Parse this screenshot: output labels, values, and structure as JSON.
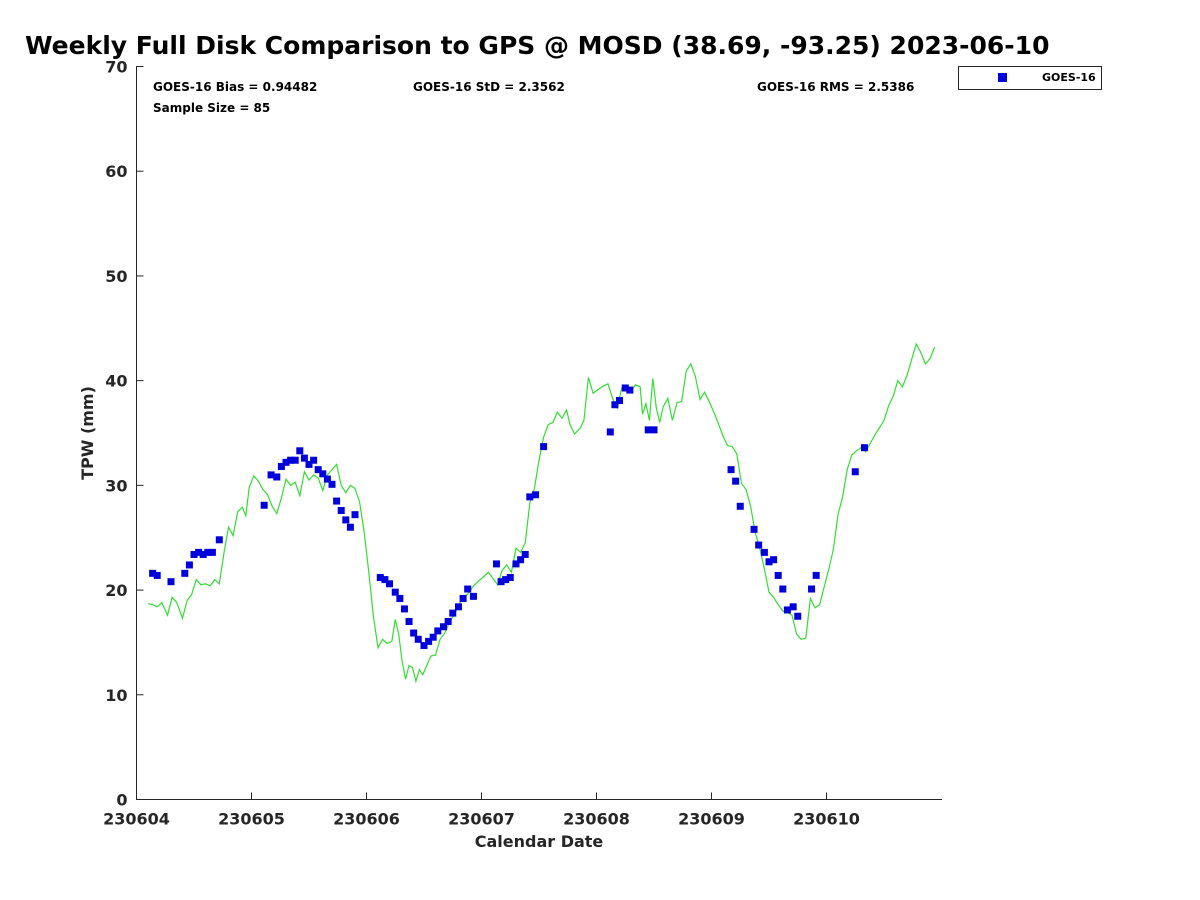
{
  "chart_data": {
    "type": "scatter",
    "title": "Weekly Full Disk Comparison to GPS @ MOSD (38.69, -93.25) 2023-06-10",
    "xlabel": "Calendar Date",
    "ylabel": "TPW (mm)",
    "xlim": [
      230604.0,
      230611.0
    ],
    "ylim": [
      0,
      70
    ],
    "x_ticks": [
      {
        "value": 230604,
        "label": "230604"
      },
      {
        "value": 230605,
        "label": "230605"
      },
      {
        "value": 230606,
        "label": "230606"
      },
      {
        "value": 230607,
        "label": "230607"
      },
      {
        "value": 230608,
        "label": "230608"
      },
      {
        "value": 230609,
        "label": "230609"
      },
      {
        "value": 230610,
        "label": "230610"
      }
    ],
    "y_ticks": [
      {
        "value": 0,
        "label": "0"
      },
      {
        "value": 10,
        "label": "10"
      },
      {
        "value": 20,
        "label": "20"
      },
      {
        "value": 30,
        "label": "30"
      },
      {
        "value": 40,
        "label": "40"
      },
      {
        "value": 50,
        "label": "50"
      },
      {
        "value": 60,
        "label": "60"
      },
      {
        "value": 70,
        "label": "70"
      }
    ],
    "grid": false,
    "legend_position": "top-right",
    "stats": {
      "bias": "GOES-16 Bias = 0.94482",
      "std": "GOES-16 StD = 2.3562",
      "rms": "GOES-16 RMS = 2.5386",
      "sample": "Sample Size = 85"
    },
    "series": [
      {
        "name": "GOES-16",
        "kind": "scatter",
        "color": "#0000dd",
        "points": [
          [
            230604.14,
            21.6
          ],
          [
            230604.18,
            21.4
          ],
          [
            230604.3,
            20.8
          ],
          [
            230604.42,
            21.6
          ],
          [
            230604.46,
            22.4
          ],
          [
            230604.5,
            23.4
          ],
          [
            230604.54,
            23.6
          ],
          [
            230604.58,
            23.4
          ],
          [
            230604.62,
            23.6
          ],
          [
            230604.66,
            23.6
          ],
          [
            230604.72,
            24.8
          ],
          [
            230605.11,
            28.1
          ],
          [
            230605.17,
            31.0
          ],
          [
            230605.22,
            30.8
          ],
          [
            230605.26,
            31.8
          ],
          [
            230605.3,
            32.2
          ],
          [
            230605.34,
            32.4
          ],
          [
            230605.38,
            32.4
          ],
          [
            230605.42,
            33.3
          ],
          [
            230605.46,
            32.6
          ],
          [
            230605.5,
            32.0
          ],
          [
            230605.54,
            32.4
          ],
          [
            230605.58,
            31.5
          ],
          [
            230605.62,
            31.1
          ],
          [
            230605.66,
            30.6
          ],
          [
            230605.7,
            30.1
          ],
          [
            230605.74,
            28.5
          ],
          [
            230605.78,
            27.6
          ],
          [
            230605.82,
            26.7
          ],
          [
            230605.86,
            26.0
          ],
          [
            230605.9,
            27.2
          ],
          [
            230606.12,
            21.2
          ],
          [
            230606.16,
            21.0
          ],
          [
            230606.2,
            20.6
          ],
          [
            230606.25,
            19.8
          ],
          [
            230606.29,
            19.2
          ],
          [
            230606.33,
            18.2
          ],
          [
            230606.37,
            17.0
          ],
          [
            230606.41,
            15.9
          ],
          [
            230606.45,
            15.3
          ],
          [
            230606.5,
            14.7
          ],
          [
            230606.54,
            15.1
          ],
          [
            230606.58,
            15.5
          ],
          [
            230606.62,
            16.1
          ],
          [
            230606.67,
            16.5
          ],
          [
            230606.71,
            17.0
          ],
          [
            230606.75,
            17.8
          ],
          [
            230606.8,
            18.4
          ],
          [
            230606.84,
            19.2
          ],
          [
            230606.88,
            20.1
          ],
          [
            230606.93,
            19.4
          ],
          [
            230607.13,
            22.5
          ],
          [
            230607.17,
            20.8
          ],
          [
            230607.21,
            21.0
          ],
          [
            230607.25,
            21.2
          ],
          [
            230607.3,
            22.5
          ],
          [
            230607.34,
            22.9
          ],
          [
            230607.38,
            23.4
          ],
          [
            230607.42,
            28.9
          ],
          [
            230607.47,
            29.1
          ],
          [
            230607.54,
            33.7
          ],
          [
            230608.12,
            35.1
          ],
          [
            230608.16,
            37.7
          ],
          [
            230608.2,
            38.1
          ],
          [
            230608.25,
            39.3
          ],
          [
            230608.29,
            39.1
          ],
          [
            230608.45,
            35.3
          ],
          [
            230608.5,
            35.3
          ],
          [
            230609.17,
            31.5
          ],
          [
            230609.21,
            30.4
          ],
          [
            230609.25,
            28.0
          ],
          [
            230609.37,
            25.8
          ],
          [
            230609.41,
            24.3
          ],
          [
            230609.46,
            23.6
          ],
          [
            230609.5,
            22.7
          ],
          [
            230609.54,
            22.9
          ],
          [
            230609.58,
            21.4
          ],
          [
            230609.62,
            20.1
          ],
          [
            230609.66,
            18.1
          ],
          [
            230609.71,
            18.4
          ],
          [
            230609.75,
            17.5
          ],
          [
            230609.87,
            20.1
          ],
          [
            230609.91,
            21.4
          ],
          [
            230610.25,
            31.3
          ],
          [
            230610.33,
            33.6
          ]
        ]
      },
      {
        "name": "",
        "kind": "line",
        "color": "#33dd33",
        "points": [
          [
            230604.1,
            18.7
          ],
          [
            230604.14,
            18.6
          ],
          [
            230604.18,
            18.4
          ],
          [
            230604.22,
            18.8
          ],
          [
            230604.27,
            17.6
          ],
          [
            230604.31,
            19.3
          ],
          [
            230604.35,
            18.8
          ],
          [
            230604.4,
            17.3
          ],
          [
            230604.44,
            19.0
          ],
          [
            230604.48,
            19.6
          ],
          [
            230604.52,
            21.0
          ],
          [
            230604.56,
            20.5
          ],
          [
            230604.6,
            20.6
          ],
          [
            230604.64,
            20.4
          ],
          [
            230604.68,
            21.0
          ],
          [
            230604.72,
            20.6
          ],
          [
            230604.76,
            23.5
          ],
          [
            230604.8,
            26.0
          ],
          [
            230604.84,
            25.2
          ],
          [
            230604.88,
            27.5
          ],
          [
            230604.92,
            27.9
          ],
          [
            230604.95,
            27.1
          ],
          [
            230604.98,
            29.8
          ],
          [
            230605.02,
            30.9
          ],
          [
            230605.06,
            30.4
          ],
          [
            230605.1,
            29.6
          ],
          [
            230605.14,
            29.1
          ],
          [
            230605.18,
            28.0
          ],
          [
            230605.22,
            27.3
          ],
          [
            230605.26,
            28.8
          ],
          [
            230605.3,
            30.6
          ],
          [
            230605.34,
            30.0
          ],
          [
            230605.38,
            30.3
          ],
          [
            230605.42,
            29.0
          ],
          [
            230605.46,
            31.3
          ],
          [
            230605.5,
            30.5
          ],
          [
            230605.54,
            31.0
          ],
          [
            230605.58,
            30.7
          ],
          [
            230605.62,
            29.5
          ],
          [
            230605.66,
            31.0
          ],
          [
            230605.7,
            31.5
          ],
          [
            230605.74,
            32.0
          ],
          [
            230605.78,
            30.0
          ],
          [
            230605.82,
            29.3
          ],
          [
            230605.86,
            30.0
          ],
          [
            230605.9,
            29.7
          ],
          [
            230605.94,
            28.4
          ],
          [
            230605.98,
            25.5
          ],
          [
            230606.02,
            21.7
          ],
          [
            230606.06,
            17.5
          ],
          [
            230606.1,
            14.5
          ],
          [
            230606.14,
            15.3
          ],
          [
            230606.18,
            14.9
          ],
          [
            230606.22,
            15.1
          ],
          [
            230606.25,
            17.2
          ],
          [
            230606.28,
            15.8
          ],
          [
            230606.31,
            13.2
          ],
          [
            230606.34,
            11.5
          ],
          [
            230606.37,
            12.8
          ],
          [
            230606.4,
            12.6
          ],
          [
            230606.43,
            11.3
          ],
          [
            230606.46,
            12.4
          ],
          [
            230606.49,
            11.9
          ],
          [
            230606.52,
            12.7
          ],
          [
            230606.56,
            13.7
          ],
          [
            230606.6,
            13.8
          ],
          [
            230606.64,
            15.3
          ],
          [
            230606.68,
            15.9
          ],
          [
            230606.72,
            16.9
          ],
          [
            230606.76,
            17.6
          ],
          [
            230606.8,
            18.5
          ],
          [
            230606.84,
            19.4
          ],
          [
            230606.88,
            19.6
          ],
          [
            230606.93,
            20.4
          ],
          [
            230606.98,
            20.9
          ],
          [
            230607.02,
            21.3
          ],
          [
            230607.06,
            21.7
          ],
          [
            230607.1,
            21.1
          ],
          [
            230607.14,
            20.5
          ],
          [
            230607.18,
            21.9
          ],
          [
            230607.22,
            22.4
          ],
          [
            230607.26,
            21.7
          ],
          [
            230607.3,
            24.0
          ],
          [
            230607.34,
            23.6
          ],
          [
            230607.38,
            24.5
          ],
          [
            230607.42,
            28.3
          ],
          [
            230607.46,
            29.7
          ],
          [
            230607.5,
            32.4
          ],
          [
            230607.54,
            34.6
          ],
          [
            230607.58,
            35.8
          ],
          [
            230607.62,
            36.0
          ],
          [
            230607.66,
            37.0
          ],
          [
            230607.7,
            36.4
          ],
          [
            230607.74,
            37.2
          ],
          [
            230607.77,
            35.8
          ],
          [
            230607.81,
            34.9
          ],
          [
            230607.86,
            35.5
          ],
          [
            230607.89,
            36.2
          ],
          [
            230607.93,
            40.3
          ],
          [
            230607.97,
            38.8
          ],
          [
            230608.02,
            39.2
          ],
          [
            230608.06,
            39.5
          ],
          [
            230608.1,
            39.7
          ],
          [
            230608.14,
            38.3
          ],
          [
            230608.18,
            37.4
          ],
          [
            230608.22,
            39.3
          ],
          [
            230608.26,
            39.4
          ],
          [
            230608.3,
            39.0
          ],
          [
            230608.34,
            39.6
          ],
          [
            230608.38,
            39.4
          ],
          [
            230608.4,
            36.8
          ],
          [
            230608.43,
            37.8
          ],
          [
            230608.46,
            36.2
          ],
          [
            230608.49,
            40.2
          ],
          [
            230608.52,
            37.4
          ],
          [
            230608.55,
            36.0
          ],
          [
            230608.58,
            37.5
          ],
          [
            230608.62,
            38.3
          ],
          [
            230608.66,
            36.2
          ],
          [
            230608.7,
            37.9
          ],
          [
            230608.74,
            38.0
          ],
          [
            230608.78,
            40.9
          ],
          [
            230608.82,
            41.6
          ],
          [
            230608.86,
            40.4
          ],
          [
            230608.9,
            38.2
          ],
          [
            230608.94,
            38.9
          ],
          [
            230608.98,
            38.0
          ],
          [
            230609.02,
            37.0
          ],
          [
            230609.06,
            35.9
          ],
          [
            230609.1,
            34.7
          ],
          [
            230609.14,
            33.8
          ],
          [
            230609.18,
            33.7
          ],
          [
            230609.22,
            33.0
          ],
          [
            230609.26,
            30.2
          ],
          [
            230609.3,
            29.6
          ],
          [
            230609.34,
            28.0
          ],
          [
            230609.38,
            25.5
          ],
          [
            230609.42,
            24.0
          ],
          [
            230609.46,
            22.0
          ],
          [
            230609.5,
            19.8
          ],
          [
            230609.54,
            19.3
          ],
          [
            230609.58,
            18.6
          ],
          [
            230609.62,
            18.0
          ],
          [
            230609.66,
            17.9
          ],
          [
            230609.7,
            17.6
          ],
          [
            230609.74,
            15.8
          ],
          [
            230609.78,
            15.3
          ],
          [
            230609.82,
            15.4
          ],
          [
            230609.86,
            19.2
          ],
          [
            230609.9,
            18.3
          ],
          [
            230609.94,
            18.6
          ],
          [
            230609.98,
            20.3
          ],
          [
            230610.02,
            22.0
          ],
          [
            230610.06,
            23.9
          ],
          [
            230610.1,
            27.2
          ],
          [
            230610.14,
            28.9
          ],
          [
            230610.18,
            31.5
          ],
          [
            230610.22,
            32.9
          ],
          [
            230610.26,
            33.3
          ],
          [
            230610.3,
            33.6
          ],
          [
            230610.34,
            33.2
          ],
          [
            230610.38,
            34.0
          ],
          [
            230610.42,
            34.8
          ],
          [
            230610.46,
            35.5
          ],
          [
            230610.5,
            36.2
          ],
          [
            230610.54,
            37.6
          ],
          [
            230610.58,
            38.5
          ],
          [
            230610.62,
            40.0
          ],
          [
            230610.66,
            39.4
          ],
          [
            230610.7,
            40.5
          ],
          [
            230610.74,
            42.0
          ],
          [
            230610.78,
            43.5
          ],
          [
            230610.82,
            42.7
          ],
          [
            230610.86,
            41.6
          ],
          [
            230610.9,
            42.1
          ],
          [
            230610.94,
            43.2
          ]
        ]
      }
    ]
  }
}
